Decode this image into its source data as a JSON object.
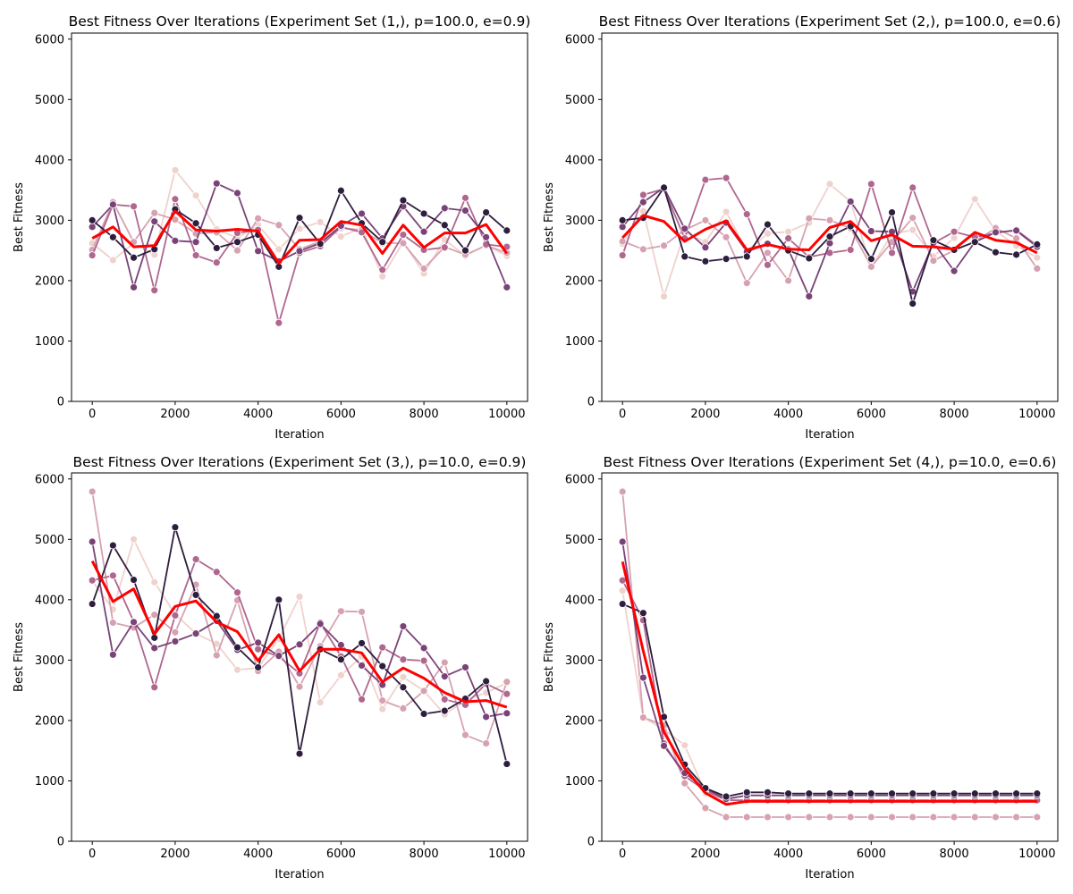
{
  "figure": {
    "mean_color": "#ff0000",
    "run_colors": [
      "#efd2cd",
      "#d6a2b1",
      "#b0678f",
      "#7a4377",
      "#2d1e3e"
    ]
  },
  "chart_data": [
    {
      "type": "line",
      "title": "Best Fitness Over Iterations (Experiment Set (1,), p=100.0, e=0.9)",
      "xlabel": "Iteration",
      "ylabel": "Best Fitness",
      "xlim": [
        -500,
        10500
      ],
      "ylim": [
        0,
        6100
      ],
      "x_ticks": [
        0,
        2000,
        4000,
        6000,
        8000,
        10000
      ],
      "y_ticks": [
        0,
        1000,
        2000,
        3000,
        4000,
        5000,
        6000
      ],
      "x": [
        0,
        500,
        1000,
        1500,
        2000,
        2500,
        3000,
        3500,
        4000,
        4500,
        5000,
        5500,
        6000,
        6500,
        7000,
        7500,
        8000,
        8500,
        9000,
        9500,
        10000
      ],
      "series": [
        {
          "values": [
            2620,
            2340,
            2620,
            2430,
            3830,
            3410,
            2850,
            2710,
            2920,
            2520,
            2860,
            2970,
            2730,
            2880,
            2070,
            2640,
            2120,
            2680,
            2410,
            2590,
            2410
          ]
        },
        {
          "values": [
            2510,
            3300,
            2640,
            3120,
            3010,
            2780,
            2800,
            2500,
            3030,
            2920,
            2520,
            2650,
            2870,
            2840,
            2620,
            2620,
            2200,
            2560,
            2430,
            2580,
            2460
          ]
        },
        {
          "values": [
            2420,
            3260,
            3230,
            1840,
            3350,
            2420,
            2300,
            2790,
            2840,
            1300,
            2460,
            2570,
            2890,
            2800,
            2180,
            2760,
            2510,
            2550,
            3370,
            2600,
            2560
          ]
        },
        {
          "values": [
            2890,
            3260,
            1890,
            2980,
            2660,
            2640,
            3610,
            3450,
            2490,
            2320,
            2490,
            2620,
            2910,
            3110,
            2700,
            3230,
            2810,
            3200,
            3160,
            2720,
            1890
          ]
        },
        {
          "values": [
            3000,
            2720,
            2380,
            2520,
            3180,
            2950,
            2540,
            2640,
            2760,
            2230,
            3040,
            2610,
            3490,
            2950,
            2640,
            3330,
            3110,
            2920,
            2500,
            3130,
            2830
          ]
        },
        {
          "mean": true,
          "values": [
            2700,
            2890,
            2560,
            2580,
            3150,
            2840,
            2820,
            2850,
            2820,
            2290,
            2670,
            2680,
            2980,
            2920,
            2450,
            2920,
            2550,
            2790,
            2790,
            2930,
            2450
          ]
        }
      ]
    },
    {
      "type": "line",
      "title": "Best Fitness Over Iterations (Experiment Set (2,), p=100.0, e=0.6)",
      "xlabel": "Iteration",
      "ylabel": "Best Fitness",
      "xlim": [
        -500,
        10500
      ],
      "ylim": [
        0,
        6100
      ],
      "x_ticks": [
        0,
        2000,
        4000,
        6000,
        8000,
        10000
      ],
      "y_ticks": [
        0,
        1000,
        2000,
        3000,
        4000,
        5000,
        6000
      ],
      "x": [
        0,
        500,
        1000,
        1500,
        2000,
        2500,
        3000,
        3500,
        4000,
        4500,
        5000,
        5500,
        6000,
        6500,
        7000,
        7500,
        8000,
        8500,
        9000,
        9500,
        10000
      ],
      "series": [
        {
          "values": [
            2610,
            3150,
            1740,
            2800,
            2640,
            3140,
            2490,
            2780,
            2810,
            2960,
            3600,
            3310,
            2220,
            2770,
            2840,
            2400,
            2710,
            3350,
            2820,
            2580,
            2380
          ]
        },
        {
          "values": [
            2650,
            2520,
            2580,
            2840,
            3000,
            2720,
            1960,
            2460,
            2000,
            3030,
            3000,
            2870,
            2230,
            2640,
            3040,
            2330,
            2500,
            2650,
            2870,
            2700,
            2200
          ]
        },
        {
          "values": [
            2420,
            3420,
            3520,
            2700,
            3670,
            3700,
            3100,
            2260,
            2700,
            2390,
            2460,
            2510,
            3600,
            2460,
            3540,
            2620,
            2810,
            2720,
            2790,
            2840,
            2580
          ]
        },
        {
          "values": [
            2890,
            3300,
            3540,
            2860,
            2550,
            2960,
            2480,
            2610,
            2520,
            1740,
            2620,
            3310,
            2820,
            2810,
            1820,
            2630,
            2160,
            2640,
            2800,
            2830,
            2560
          ]
        },
        {
          "values": [
            3000,
            3040,
            3540,
            2400,
            2320,
            2360,
            2400,
            2930,
            2500,
            2370,
            2730,
            2900,
            2360,
            3130,
            1620,
            2670,
            2510,
            2640,
            2470,
            2430,
            2600
          ]
        },
        {
          "mean": true,
          "values": [
            2710,
            3080,
            2980,
            2650,
            2850,
            2990,
            2510,
            2600,
            2520,
            2510,
            2880,
            2980,
            2660,
            2760,
            2570,
            2560,
            2520,
            2800,
            2670,
            2630,
            2460
          ]
        }
      ]
    },
    {
      "type": "line",
      "title": "Best Fitness Over Iterations (Experiment Set (3,), p=10.0, e=0.9)",
      "xlabel": "Iteration",
      "ylabel": "Best Fitness",
      "xlim": [
        -500,
        10500
      ],
      "ylim": [
        0,
        6100
      ],
      "x_ticks": [
        0,
        2000,
        4000,
        6000,
        8000,
        10000
      ],
      "y_ticks": [
        0,
        1000,
        2000,
        3000,
        4000,
        5000,
        6000
      ],
      "x": [
        0,
        500,
        1000,
        1500,
        2000,
        2500,
        3000,
        3500,
        4000,
        4500,
        5000,
        5500,
        6000,
        6500,
        7000,
        7500,
        8000,
        8500,
        9000,
        9500,
        10000
      ],
      "series": [
        {
          "values": [
            4310,
            3840,
            5000,
            4290,
            3760,
            3440,
            3270,
            2840,
            2870,
            3350,
            4050,
            2300,
            2750,
            3060,
            2190,
            2720,
            2490,
            2100,
            2340,
            2460,
            2620
          ]
        },
        {
          "values": [
            5790,
            3620,
            3540,
            3750,
            3460,
            4250,
            3080,
            3990,
            2820,
            3140,
            2560,
            3230,
            3810,
            3800,
            2330,
            2200,
            2490,
            2960,
            1760,
            1620,
            2640
          ]
        },
        {
          "values": [
            4320,
            4400,
            3640,
            2550,
            3740,
            4670,
            4460,
            4120,
            3180,
            3060,
            2780,
            3620,
            3060,
            2350,
            3210,
            3010,
            2990,
            2350,
            2260,
            2610,
            2440
          ]
        },
        {
          "values": [
            4960,
            3090,
            3630,
            3200,
            3310,
            3440,
            3650,
            3170,
            3290,
            3070,
            3260,
            3600,
            3250,
            2910,
            2590,
            3560,
            3200,
            2730,
            2880,
            2060,
            2120
          ]
        },
        {
          "values": [
            3930,
            4900,
            4330,
            3370,
            5200,
            4080,
            3730,
            3210,
            2880,
            4000,
            1450,
            3180,
            3010,
            3280,
            2900,
            2550,
            2110,
            2160,
            2360,
            2650,
            1280
          ]
        },
        {
          "mean": true,
          "values": [
            4640,
            3970,
            4180,
            3430,
            3890,
            3980,
            3630,
            3470,
            2990,
            3420,
            2820,
            3180,
            3180,
            3120,
            2640,
            2870,
            2700,
            2460,
            2310,
            2330,
            2220
          ]
        }
      ]
    },
    {
      "type": "line",
      "title": "Best Fitness Over Iterations (Experiment Set (4,), p=10.0, e=0.6)",
      "xlabel": "Iteration",
      "ylabel": "Best Fitness",
      "xlim": [
        -500,
        10500
      ],
      "ylim": [
        0,
        6100
      ],
      "x_ticks": [
        0,
        2000,
        4000,
        6000,
        8000,
        10000
      ],
      "y_ticks": [
        0,
        1000,
        2000,
        3000,
        4000,
        5000,
        6000
      ],
      "x": [
        0,
        500,
        1000,
        1500,
        2000,
        2500,
        3000,
        3500,
        4000,
        4500,
        5000,
        5500,
        6000,
        6500,
        7000,
        7500,
        8000,
        8500,
        9000,
        9500,
        10000
      ],
      "series": [
        {
          "values": [
            4150,
            2050,
            1850,
            1590,
            800,
            690,
            680,
            680,
            680,
            680,
            680,
            680,
            680,
            680,
            680,
            680,
            680,
            680,
            680,
            680,
            680
          ]
        },
        {
          "values": [
            5790,
            2050,
            1920,
            960,
            550,
            400,
            400,
            400,
            400,
            400,
            400,
            400,
            400,
            400,
            400,
            400,
            400,
            400,
            400,
            400,
            400
          ]
        },
        {
          "values": [
            4320,
            3660,
            1620,
            1080,
            840,
            680,
            680,
            680,
            680,
            680,
            680,
            680,
            680,
            680,
            680,
            680,
            680,
            680,
            680,
            680,
            680
          ]
        },
        {
          "values": [
            4960,
            2710,
            1580,
            1130,
            870,
            700,
            760,
            760,
            760,
            760,
            760,
            760,
            760,
            760,
            760,
            760,
            760,
            760,
            760,
            760,
            760
          ]
        },
        {
          "values": [
            3930,
            3780,
            2060,
            1270,
            880,
            740,
            810,
            810,
            790,
            790,
            790,
            790,
            790,
            790,
            790,
            790,
            790,
            790,
            790,
            790,
            790
          ]
        },
        {
          "mean": true,
          "values": [
            4630,
            3150,
            1810,
            1210,
            800,
            610,
            660,
            660,
            660,
            660,
            660,
            660,
            660,
            660,
            660,
            660,
            660,
            660,
            660,
            660,
            660
          ]
        }
      ]
    }
  ]
}
